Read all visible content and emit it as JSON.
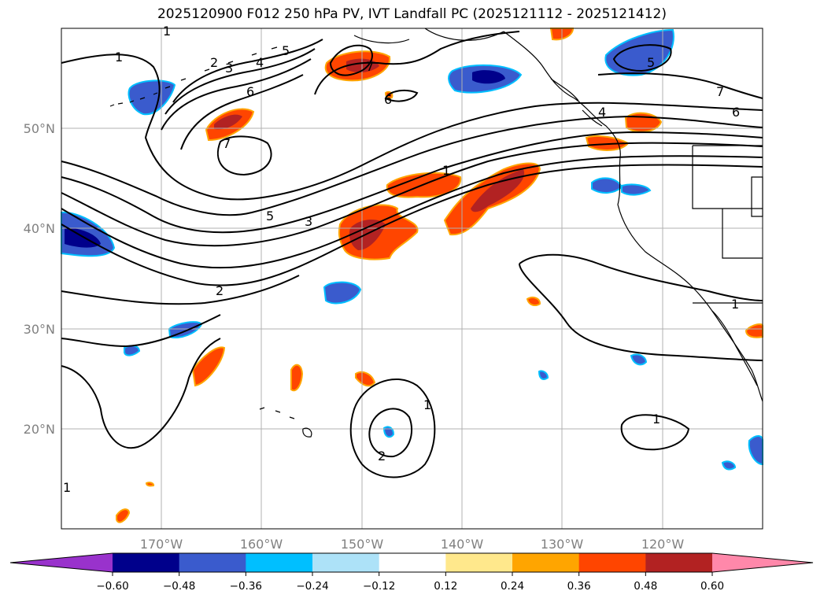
{
  "title": "2025120900 F012 250 hPa PV, IVT Landfall PC (2025121112 - 2025121412)",
  "lon_labels": [
    "170°W",
    "160°W",
    "150°W",
    "140°W",
    "130°W",
    "120°W"
  ],
  "lat_labels": [
    "50°N",
    "40°N",
    "30°N",
    "20°N"
  ],
  "contour_labels": [
    "1",
    "2",
    "3",
    "4",
    "5",
    "6",
    "7",
    "1",
    "7",
    "5",
    "3",
    "2",
    "6",
    "4",
    "5",
    "7",
    "6",
    "1",
    "1",
    "1",
    "2",
    "1",
    "1",
    "1"
  ],
  "colorbar": {
    "ticks": [
      "−0.60",
      "−0.48",
      "−0.36",
      "−0.24",
      "−0.12",
      "0.12",
      "0.24",
      "0.36",
      "0.48",
      "0.60"
    ],
    "colors": [
      "#9932cc",
      "#00008b",
      "#3a5bcd",
      "#00bfff",
      "#ade2f8",
      "#ffffff",
      "#ffe88c",
      "#ffa500",
      "#ff4500",
      "#b22222",
      "#ff88aa"
    ]
  },
  "map": {
    "lon_range": [
      -180,
      -110
    ],
    "lat_range": [
      10,
      60
    ],
    "gridlines": true,
    "colors": {
      "land_outline": "#000000",
      "contour": "#000000",
      "gridline": "#b0b0b0"
    }
  }
}
